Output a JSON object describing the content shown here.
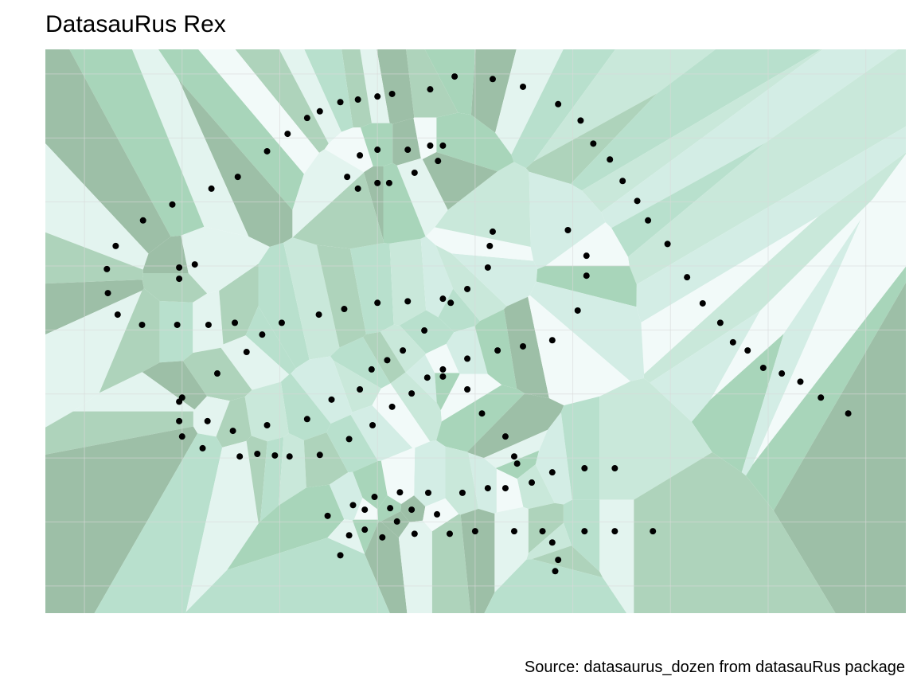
{
  "chart_data": {
    "type": "scatter",
    "title": "DatasauRus Rex",
    "caption": "Source: datasaurus_dozen from datasauRus package",
    "color": "#000000",
    "grid": true,
    "xlim": [
      16.0,
      104.1
    ],
    "ylim": [
      -5.3,
      104.8
    ],
    "xticks": [
      20,
      30,
      40,
      50,
      60,
      70,
      80,
      90,
      100
    ],
    "yticks": [
      0,
      12.5,
      25,
      37.5,
      50,
      62.5,
      75,
      87.5,
      100
    ],
    "x": [
      57.9,
      61.8,
      64.9,
      55.4,
      51.5,
      50.0,
      48.0,
      46.2,
      44.1,
      42.8,
      68.5,
      70.8,
      72.1,
      73.8,
      75.1,
      76.6,
      77.7,
      79.7,
      81.7,
      83.3,
      85.1,
      86.4,
      87.9,
      89.5,
      91.4,
      93.3,
      95.4,
      98.2,
      40.8,
      38.7,
      35.7,
      33.0,
      29.0,
      26.0,
      23.2,
      22.3,
      22.4,
      23.4,
      25.9,
      29.5,
      32.7,
      35.4,
      40.2,
      44.0,
      46.6,
      50.0,
      53.1,
      56.7,
      57.5,
      59.2,
      61.3,
      61.5,
      61.8,
      69.5,
      71.4,
      71.4,
      70.5,
      48.2,
      50.0,
      53.1,
      55.4,
      56.7,
      56.2,
      53.8,
      51.2,
      50.0,
      46.9,
      48.0,
      29.7,
      31.3,
      29.7,
      38.2,
      36.6,
      33.6,
      54.8,
      52.6,
      51.0,
      49.4,
      48.2,
      45.3,
      42.8,
      38.7,
      49.5,
      51.5,
      53.5,
      55.1,
      56.7,
      56.7,
      59.2,
      59.2,
      62.3,
      64.9,
      67.9,
      60.7,
      63.1,
      64.0,
      64.3,
      30.0,
      29.7,
      29.7,
      30.0,
      32.6,
      35.2,
      32.1,
      35.9,
      37.7,
      39.5,
      41.0,
      44.1,
      47.1,
      65.8,
      67.9,
      71.2,
      74.3,
      61.3,
      63.1,
      58.7,
      55.2,
      52.3,
      49.7,
      47.5,
      48.7,
      51.3,
      53.5,
      56.1,
      44.9,
      52.0,
      47.1,
      48.7,
      50.5,
      53.8,
      57.4,
      60.0,
      64.0,
      66.9,
      71.2,
      74.3,
      78.2,
      46.2,
      67.9,
      68.5,
      68.2
    ],
    "values": [
      99.5,
      99.0,
      97.5,
      97.0,
      96.1,
      95.6,
      95.0,
      94.5,
      92.7,
      91.4,
      94.1,
      90.9,
      86.4,
      83.3,
      79.1,
      75.2,
      71.4,
      66.8,
      60.3,
      55.2,
      51.4,
      47.6,
      46.0,
      42.6,
      41.5,
      39.9,
      36.8,
      33.7,
      88.3,
      84.9,
      79.9,
      77.6,
      74.5,
      71.4,
      66.4,
      61.9,
      57.2,
      53.0,
      51.0,
      51.0,
      51.0,
      51.4,
      51.4,
      53.0,
      54.1,
      55.3,
      55.6,
      56.1,
      55.3,
      58.0,
      62.2,
      66.4,
      69.2,
      69.5,
      64.5,
      60.6,
      53.8,
      84.1,
      85.2,
      85.2,
      86.0,
      86.0,
      83.0,
      80.7,
      78.7,
      78.7,
      79.9,
      77.6,
      62.2,
      62.8,
      60.0,
      49.1,
      45.7,
      41.5,
      49.9,
      46.0,
      44.1,
      42.3,
      38.4,
      36.4,
      32.6,
      31.4,
      31.4,
      35.0,
      37.6,
      40.7,
      42.3,
      40.9,
      44.4,
      38.4,
      46.0,
      46.8,
      48.0,
      33.7,
      29.2,
      25.3,
      23.9,
      36.8,
      36.0,
      32.2,
      29.2,
      32.2,
      30.3,
      26.9,
      25.3,
      25.8,
      25.5,
      25.3,
      25.6,
      28.7,
      20.2,
      22.2,
      23.0,
      23.0,
      19.1,
      19.1,
      18.2,
      18.2,
      18.3,
      17.4,
      15.8,
      14.9,
      15.2,
      14.9,
      14.0,
      13.7,
      12.6,
      9.9,
      11.0,
      9.5,
      10.2,
      10.2,
      10.7,
      10.7,
      10.7,
      10.7,
      10.7,
      10.7,
      6.0,
      8.5,
      5.1,
      2.9
    ]
  }
}
